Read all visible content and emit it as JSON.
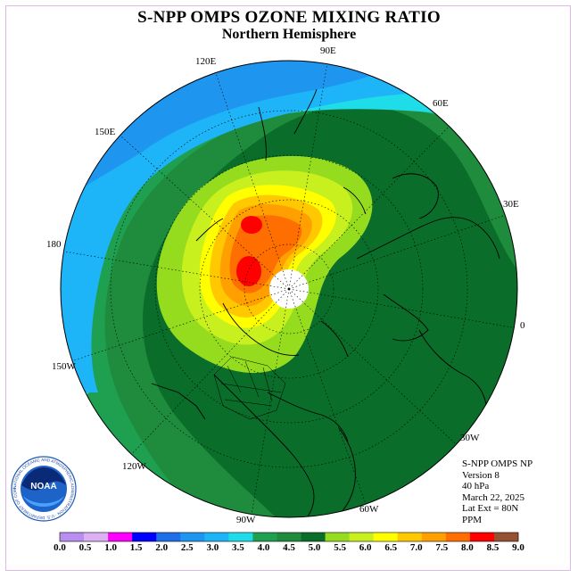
{
  "header": {
    "title": "S-NPP OMPS OZONE MIXING RATIO",
    "subtitle": "Northern Hemisphere"
  },
  "longitude_labels": [
    "90E",
    "60E",
    "30E",
    "0",
    "30W",
    "60W",
    "90W",
    "120W",
    "150W",
    "180",
    "150E",
    "120E"
  ],
  "info": {
    "line1": "S-NPP OMPS NP",
    "line2": "Version 8",
    "line3": "40 hPa",
    "line4": "March 22, 2025",
    "line5": "Lat Ext = 80N",
    "line6": "PPM"
  },
  "colorbar": {
    "ticks": [
      "0.0",
      "0.5",
      "1.0",
      "1.5",
      "2.0",
      "2.5",
      "3.0",
      "3.5",
      "4.0",
      "4.5",
      "5.0",
      "5.5",
      "6.0",
      "6.5",
      "7.0",
      "7.5",
      "8.0",
      "8.5",
      "9.0"
    ],
    "colors": [
      "#b98ef0",
      "#dcb0f4",
      "#ff00ff",
      "#0000ff",
      "#1e6ee8",
      "#1e96f0",
      "#1eb4f8",
      "#1edce8",
      "#1ea050",
      "#1e8c3c",
      "#0a6e2a",
      "#96dc1e",
      "#c8f01e",
      "#ffff00",
      "#ffc800",
      "#ffa000",
      "#ff6e00",
      "#ff0000",
      "#965032"
    ]
  },
  "logo": {
    "text": "NOAA",
    "ring_text": "NATIONAL OCEANIC AND ATMOSPHERIC ADMINISTRATION · U.S. DEPARTMENT OF COMMERCE"
  },
  "colors": {
    "background": "#ffffff",
    "frame": "#e0b8e8"
  }
}
